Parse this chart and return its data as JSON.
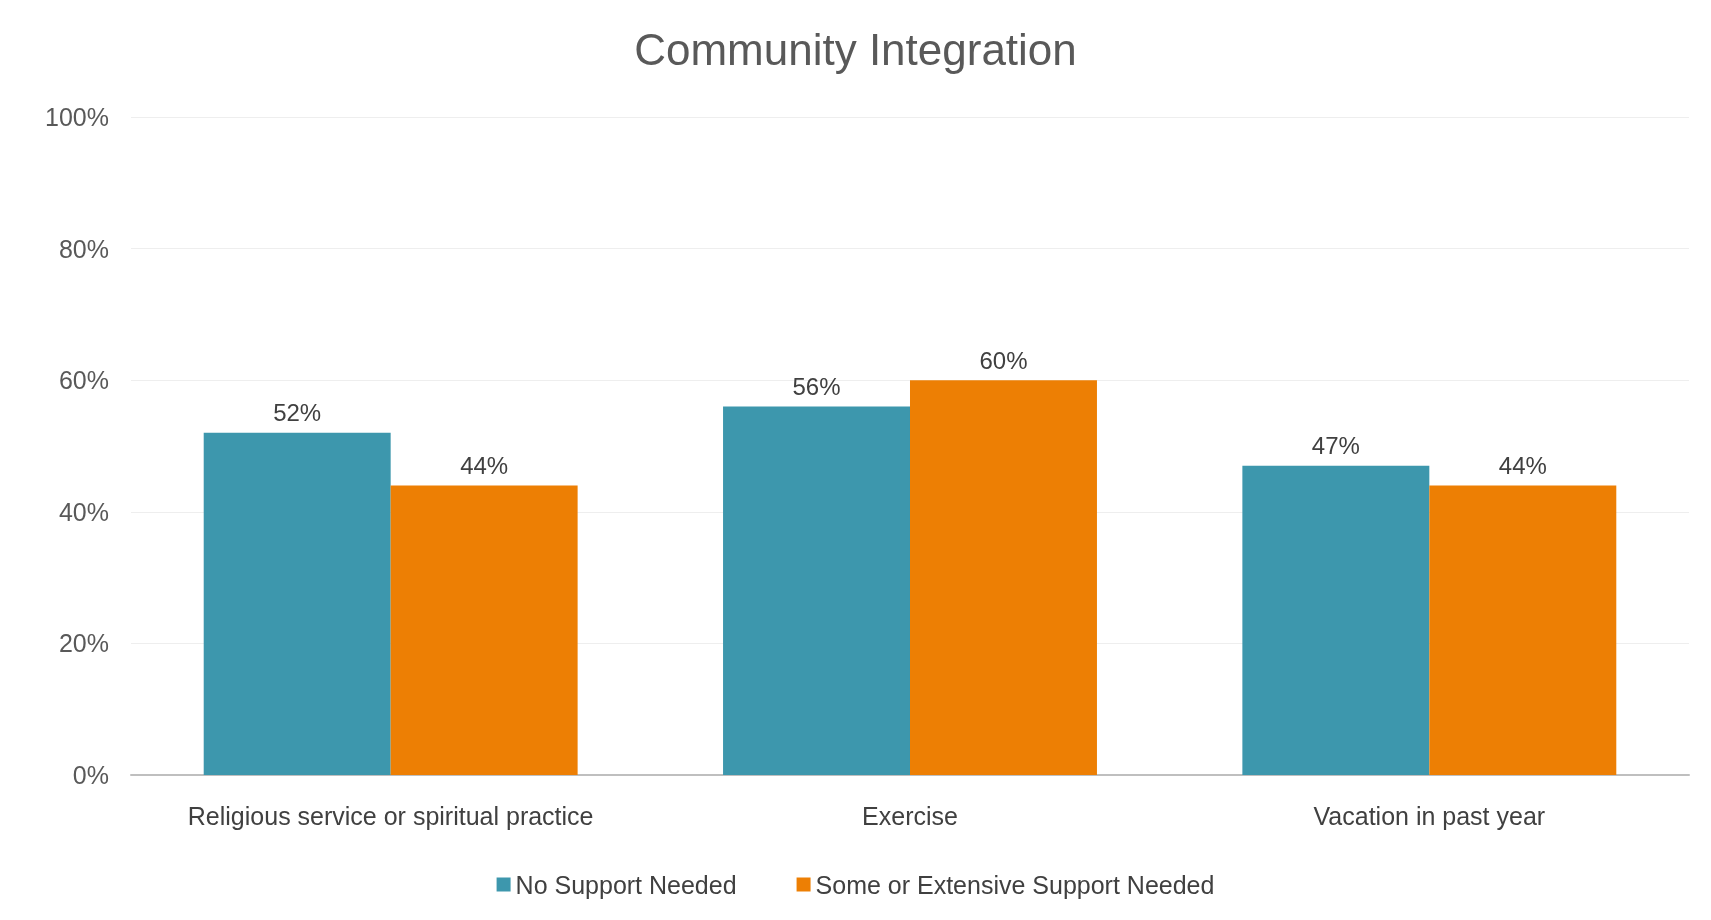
{
  "chart_data": {
    "type": "bar",
    "title": "Community Integration",
    "categories": [
      "Religious service or spiritual practice",
      "Exercise",
      "Vacation in past year"
    ],
    "series": [
      {
        "name": "No Support Needed",
        "color": "#3d97ad",
        "values": [
          52,
          56,
          47
        ],
        "value_labels": [
          "52%",
          "56%",
          "47%"
        ]
      },
      {
        "name": "Some or Extensive Support Needed",
        "color": "#ed7f04",
        "values": [
          44,
          60,
          44
        ],
        "value_labels": [
          "44%",
          "60%",
          "44%"
        ]
      }
    ],
    "ylim": [
      0,
      100
    ],
    "yticks": [
      {
        "value": 0,
        "label": "0%"
      },
      {
        "value": 20,
        "label": "20%"
      },
      {
        "value": 40,
        "label": "40%"
      },
      {
        "value": 60,
        "label": "60%"
      },
      {
        "value": 80,
        "label": "80%"
      },
      {
        "value": 100,
        "label": "100%"
      }
    ],
    "grid": "y",
    "legend": "bottom"
  }
}
